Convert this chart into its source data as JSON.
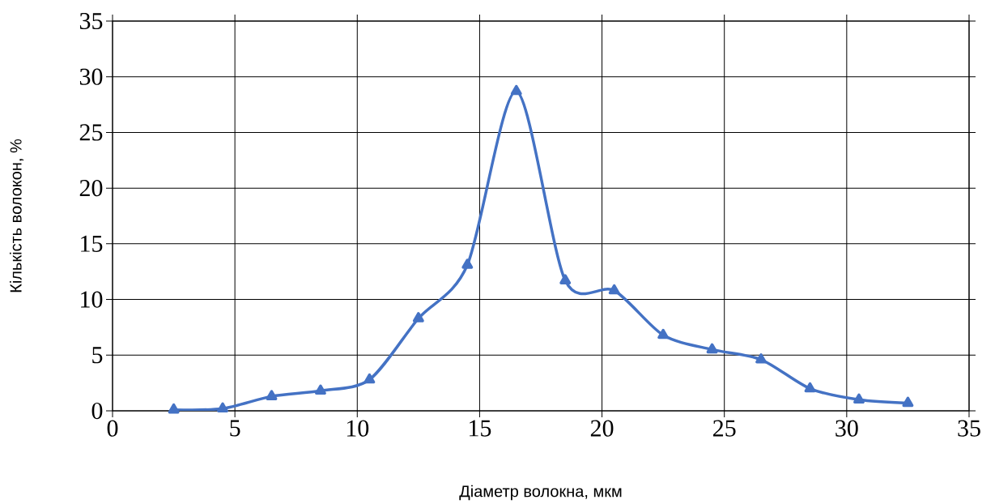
{
  "chart_data": {
    "type": "line",
    "xlabel": "Діаметр волокна, мкм",
    "ylabel": "Кількість волокон, %",
    "x": [
      2.5,
      4.5,
      6.5,
      8.5,
      10.5,
      12.5,
      14.5,
      16.5,
      18.5,
      20.5,
      22.5,
      24.5,
      26.5,
      28.5,
      30.5,
      32.5
    ],
    "values": [
      0.1,
      0.2,
      1.3,
      1.8,
      2.8,
      8.3,
      13.1,
      28.7,
      11.7,
      10.8,
      6.8,
      5.5,
      4.6,
      2.0,
      1.0,
      0.7
    ],
    "color": "#4472c4",
    "marker": "triangle",
    "line_style": "solid",
    "grid": true,
    "xlim": [
      0,
      35
    ],
    "xticks": [
      0,
      5,
      10,
      15,
      20,
      25,
      30,
      35
    ],
    "ylim": [
      0,
      35
    ],
    "yticks": [
      0,
      5,
      10,
      15,
      20,
      25,
      30,
      35
    ]
  }
}
